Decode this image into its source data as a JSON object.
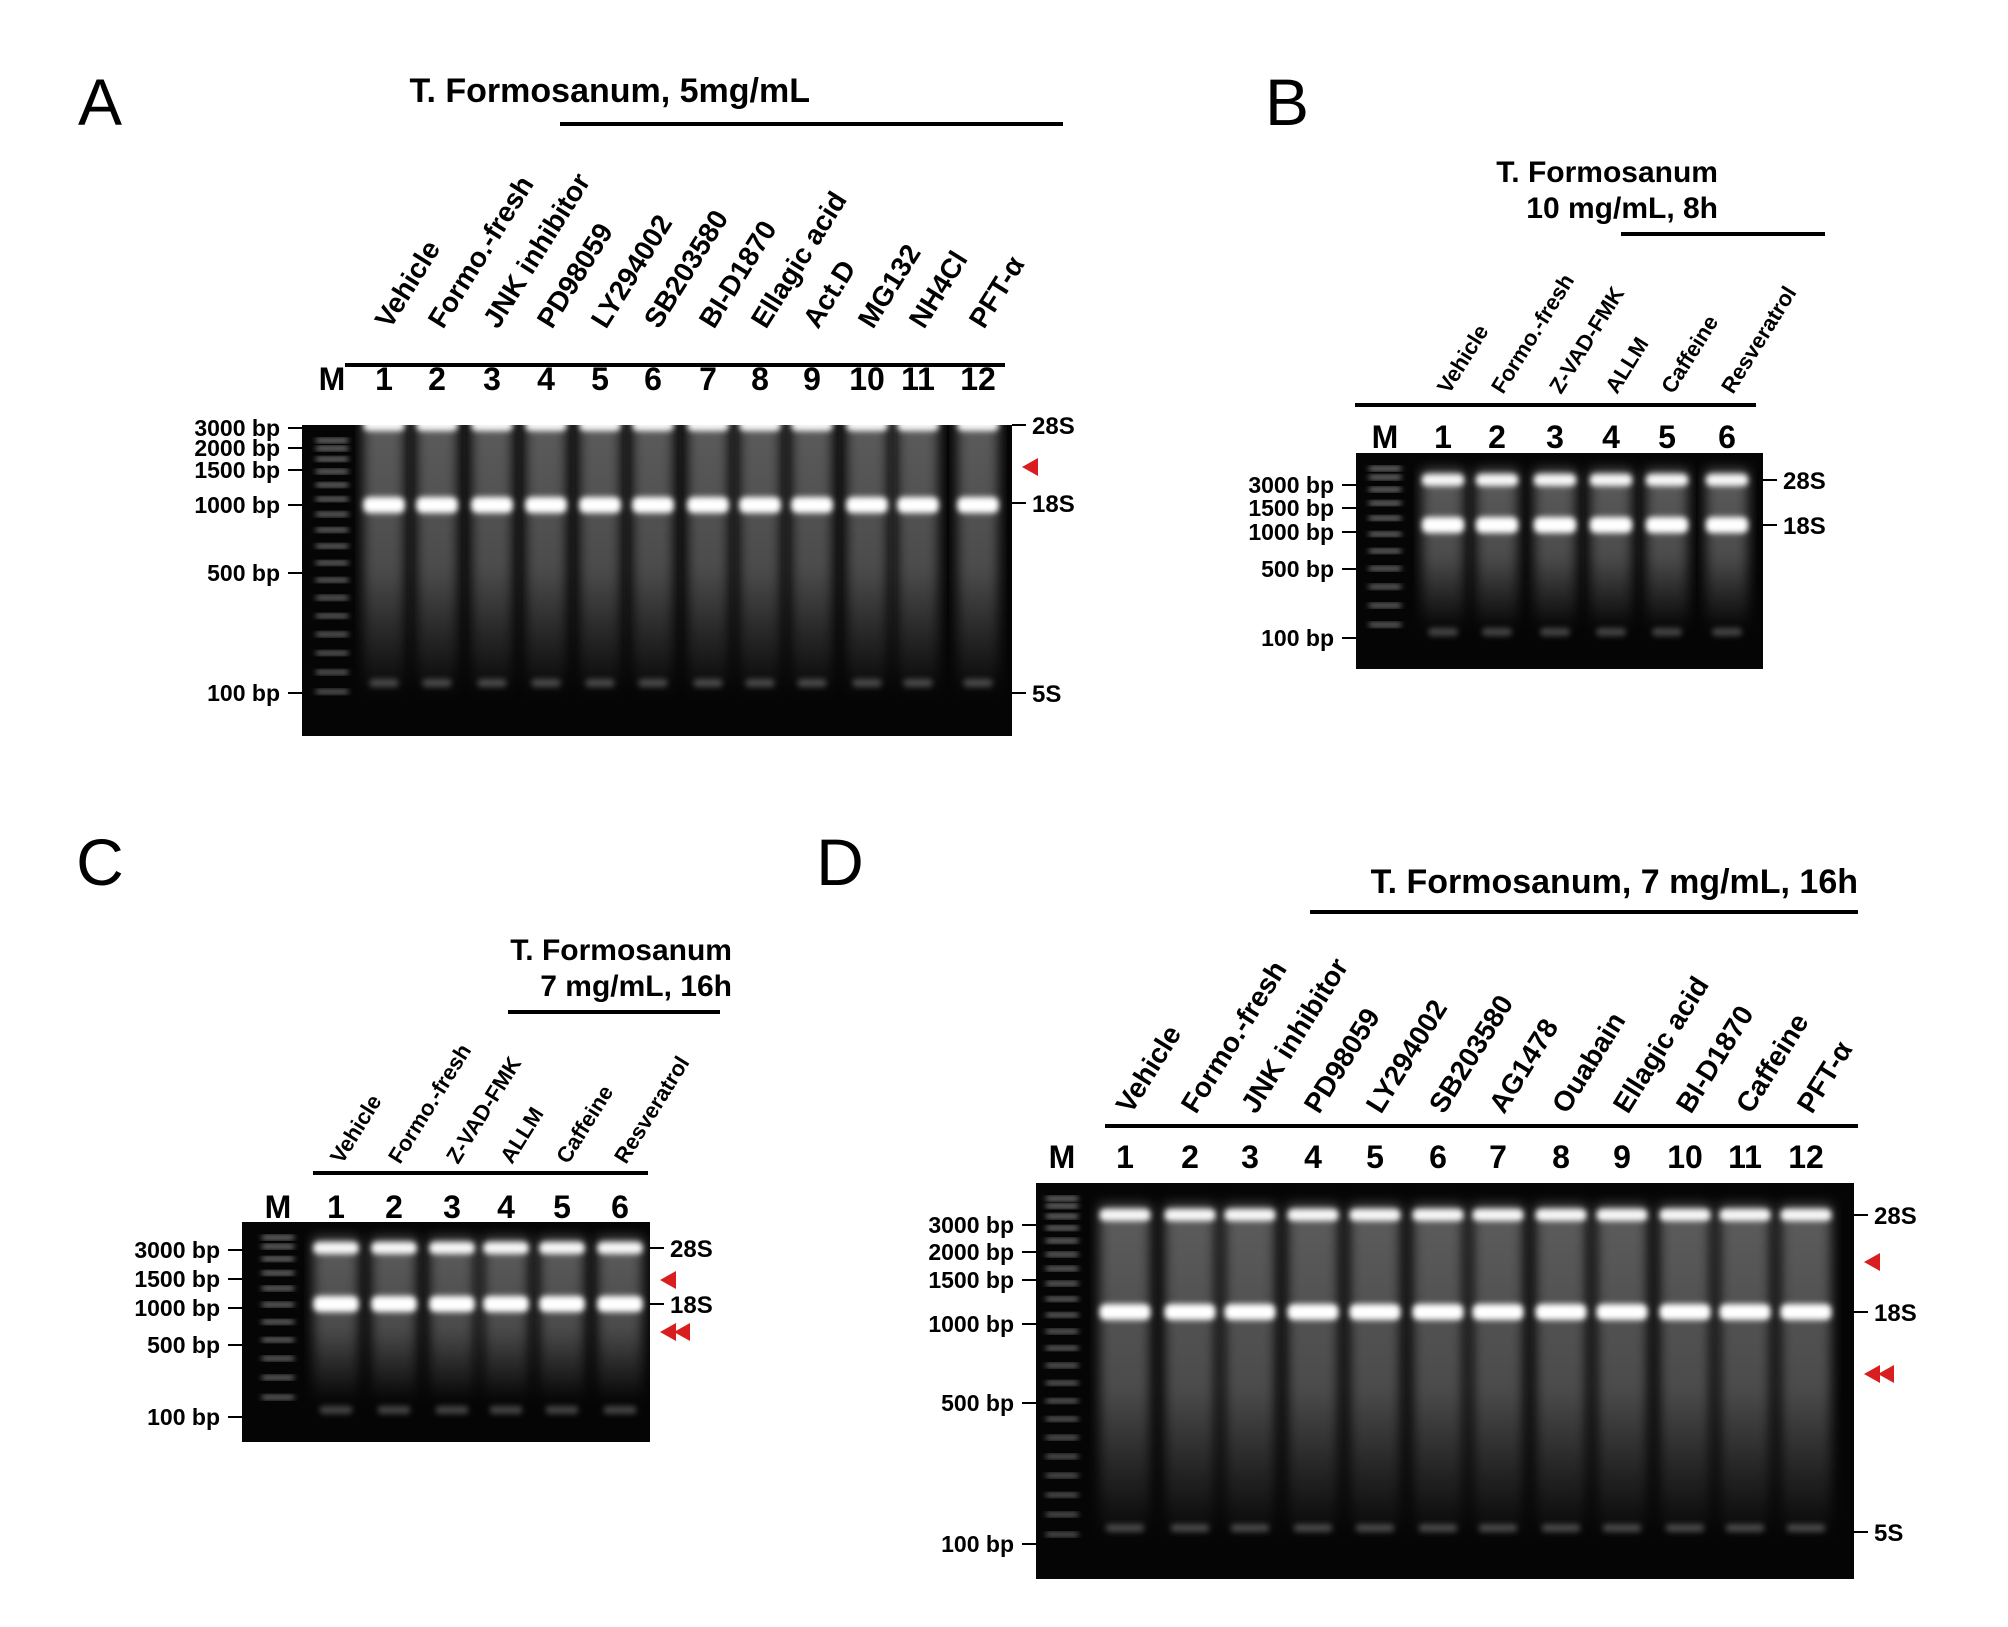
{
  "colors": {
    "gel_background": "#050505",
    "band": "#ffffff",
    "arrowhead": "#d81e1e",
    "text": "#000000"
  },
  "panels": [
    {
      "id": "A",
      "letter": "A",
      "title_lines": [
        "T. Formosanum, 5mg/mL"
      ],
      "marker": "M",
      "lane_numbers": [
        "1",
        "2",
        "3",
        "4",
        "5",
        "6",
        "7",
        "8",
        "9",
        "10",
        "11",
        "12"
      ],
      "conditions": [
        "Vehicle",
        "Formo.-fresh",
        "JNK inhibitor",
        "PD98059",
        "LY294002",
        "SB203580",
        "BI-D1870",
        "Ellagic acid",
        "Act.D",
        "MG132",
        "NH4Cl",
        "PFT-α"
      ],
      "treated_lanes": [
        4,
        12
      ],
      "ladder_labels": [
        "3000 bp",
        "2000 bp",
        "1500 bp",
        "1000 bp",
        "500 bp",
        "100 bp"
      ],
      "rrna_labels": [
        "28S",
        "18S",
        "5S"
      ],
      "arrowheads": [
        {
          "kind": "single",
          "position": "between 28S and 18S"
        }
      ]
    },
    {
      "id": "B",
      "letter": "B",
      "title_lines": [
        "T. Formosanum",
        "10 mg/mL, 8h"
      ],
      "marker": "M",
      "lane_numbers": [
        "1",
        "2",
        "3",
        "4",
        "5",
        "6"
      ],
      "conditions": [
        "Vehicle",
        "Formo.-fresh",
        "Z-VAD-FMK",
        "ALLM",
        "Caffeine",
        "Resveratrol"
      ],
      "treated_lanes": [
        4,
        6
      ],
      "ladder_labels": [
        "3000 bp",
        "1500 bp",
        "1000 bp",
        "500 bp",
        "100 bp"
      ],
      "rrna_labels": [
        "28S",
        "18S"
      ],
      "arrowheads": []
    },
    {
      "id": "C",
      "letter": "C",
      "title_lines": [
        "T. Formosanum",
        "7 mg/mL, 16h"
      ],
      "marker": "M",
      "lane_numbers": [
        "1",
        "2",
        "3",
        "4",
        "5",
        "6"
      ],
      "conditions": [
        "Vehicle",
        "Formo.-fresh",
        "Z-VAD-FMK",
        "ALLM",
        "Caffeine",
        "Resveratrol"
      ],
      "treated_lanes": [
        4,
        6
      ],
      "ladder_labels": [
        "3000 bp",
        "1500 bp",
        "1000 bp",
        "500 bp",
        "100 bp"
      ],
      "rrna_labels": [
        "28S",
        "18S"
      ],
      "arrowheads": [
        {
          "kind": "single",
          "position": "between 28S and 18S"
        },
        {
          "kind": "double",
          "position": "below 18S"
        }
      ]
    },
    {
      "id": "D",
      "letter": "D",
      "title_lines": [
        "T. Formosanum, 7 mg/mL, 16h"
      ],
      "marker": "M",
      "lane_numbers": [
        "1",
        "2",
        "3",
        "4",
        "5",
        "6",
        "7",
        "8",
        "9",
        "10",
        "11",
        "12"
      ],
      "conditions": [
        "Vehicle",
        "Formo.-fresh",
        "JNK inhibitor",
        "PD98059",
        "LY294002",
        "SB203580",
        "AG1478",
        "Ouabain",
        "Ellagic acid",
        "BI-D1870",
        "Caffeine",
        "PFT-α"
      ],
      "treated_lanes": [
        3,
        12
      ],
      "ladder_labels": [
        "3000 bp",
        "2000 bp",
        "1500 bp",
        "1000 bp",
        "500 bp",
        "100 bp"
      ],
      "rrna_labels": [
        "28S",
        "18S",
        "5S"
      ],
      "arrowheads": [
        {
          "kind": "single",
          "position": "between 28S and 18S"
        },
        {
          "kind": "double",
          "position": "below 18S"
        }
      ]
    }
  ]
}
